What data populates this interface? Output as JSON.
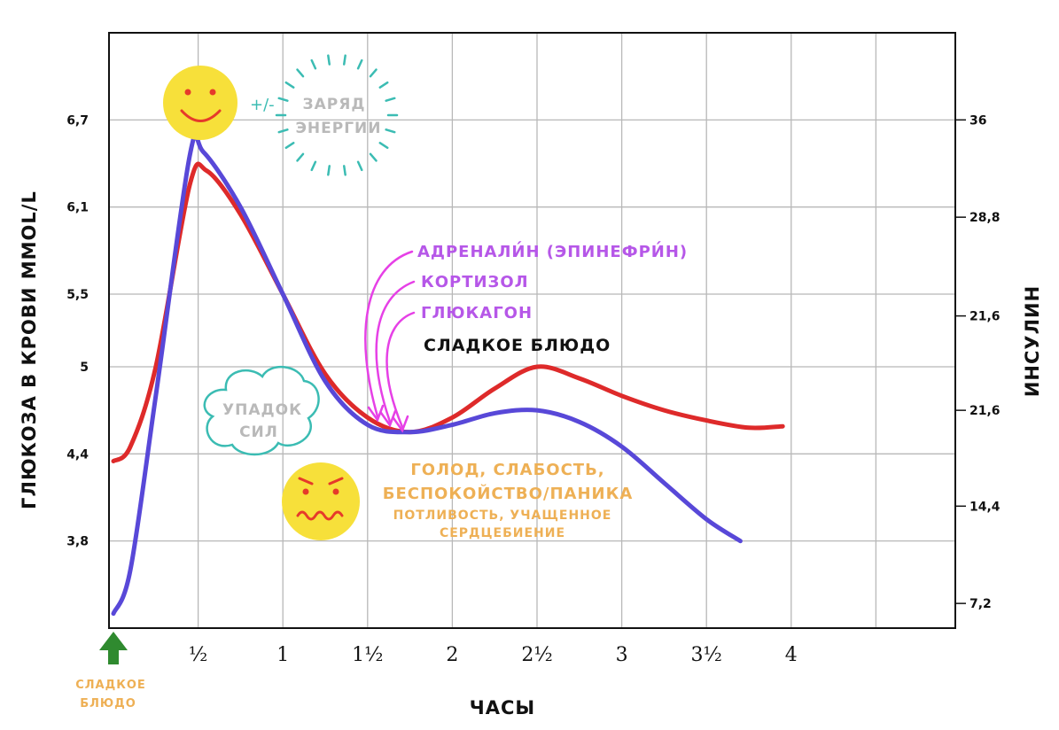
{
  "chart_data": {
    "type": "line",
    "xlabel": "ЧАСЫ",
    "ylabel": "ГЛЮКОЗА В КРОВИ MMOL/L",
    "y2label": "ИНСУЛИН",
    "x_ticks": [
      "½",
      "1",
      "1½",
      "2",
      "2½",
      "3",
      "3½",
      "4"
    ],
    "x_tick_values": [
      0.5,
      1,
      1.5,
      2,
      2.5,
      3,
      3.5,
      4
    ],
    "xlim": [
      0,
      5
    ],
    "y_ticks": [
      "6,7",
      "6,1",
      "5,5",
      "5",
      "4,4",
      "3,8"
    ],
    "y_tick_values": [
      6.7,
      6.1,
      5.5,
      5.0,
      4.4,
      3.8
    ],
    "ylim": [
      3.2,
      7.3
    ],
    "y2_ticks": [
      "36",
      "28,8",
      "21,6",
      "21,6",
      "14,4",
      "7,2"
    ],
    "grid": true,
    "series": [
      {
        "name": "red",
        "color": "#de2a2a",
        "x": [
          0.0,
          0.1,
          0.25,
          0.45,
          0.55,
          0.75,
          1.0,
          1.25,
          1.5,
          1.75,
          2.0,
          2.25,
          2.5,
          2.75,
          3.0,
          3.25,
          3.5,
          3.75,
          3.95
        ],
        "y": [
          4.35,
          4.45,
          5.0,
          6.25,
          6.35,
          6.05,
          5.5,
          4.95,
          4.65,
          4.55,
          4.65,
          4.85,
          5.0,
          4.92,
          4.8,
          4.7,
          4.63,
          4.58,
          4.59
        ]
      },
      {
        "name": "blue",
        "color": "#5848d8",
        "x": [
          0.0,
          0.1,
          0.25,
          0.45,
          0.53,
          0.75,
          1.0,
          1.25,
          1.5,
          1.75,
          2.0,
          2.25,
          2.5,
          2.75,
          3.0,
          3.25,
          3.5,
          3.7
        ],
        "y": [
          3.3,
          3.6,
          4.8,
          6.45,
          6.48,
          6.1,
          5.5,
          4.9,
          4.6,
          4.55,
          4.6,
          4.68,
          4.7,
          4.62,
          4.45,
          4.2,
          3.95,
          3.8
        ]
      }
    ]
  },
  "annotations": {
    "energy_line1": "ЗАРЯД",
    "energy_line2": "ЭНЕРГИИ",
    "plus_minus": "+/-",
    "fatigue_line1": "УПАДОК",
    "fatigue_line2": "СИЛ",
    "hormone1": "АДРЕНАЛИ́Н (ЭПИНЕФРИ́Н)",
    "hormone2": "КОРТИЗОЛ",
    "hormone3": "ГЛЮКАГОН",
    "sweet_dish": "СЛАДКОЕ БЛЮДО",
    "symptoms_line1": "ГОЛОД, СЛАБОСТЬ,",
    "symptoms_line2": "БЕСПОКОЙСТВО/ПАНИКА",
    "symptoms_line3": "ПОТЛИВОСТЬ, УЧАЩЕННОЕ",
    "symptoms_line4": "СЕРДЦЕБИЕНИЕ",
    "start_line1": "СЛАДКОЕ",
    "start_line2": "БЛЮДО"
  },
  "colors": {
    "red_line": "#de2a2a",
    "blue_line": "#5848d8",
    "hormone_text": "#b657e8",
    "hormone_arrow": "#e640e6",
    "symptom_text": "#eeb055",
    "smiley": "#f7e03a",
    "teal": "#3bbcb3",
    "grey_text": "#b9b9b9",
    "start_arrow": "#2f8a2f"
  }
}
